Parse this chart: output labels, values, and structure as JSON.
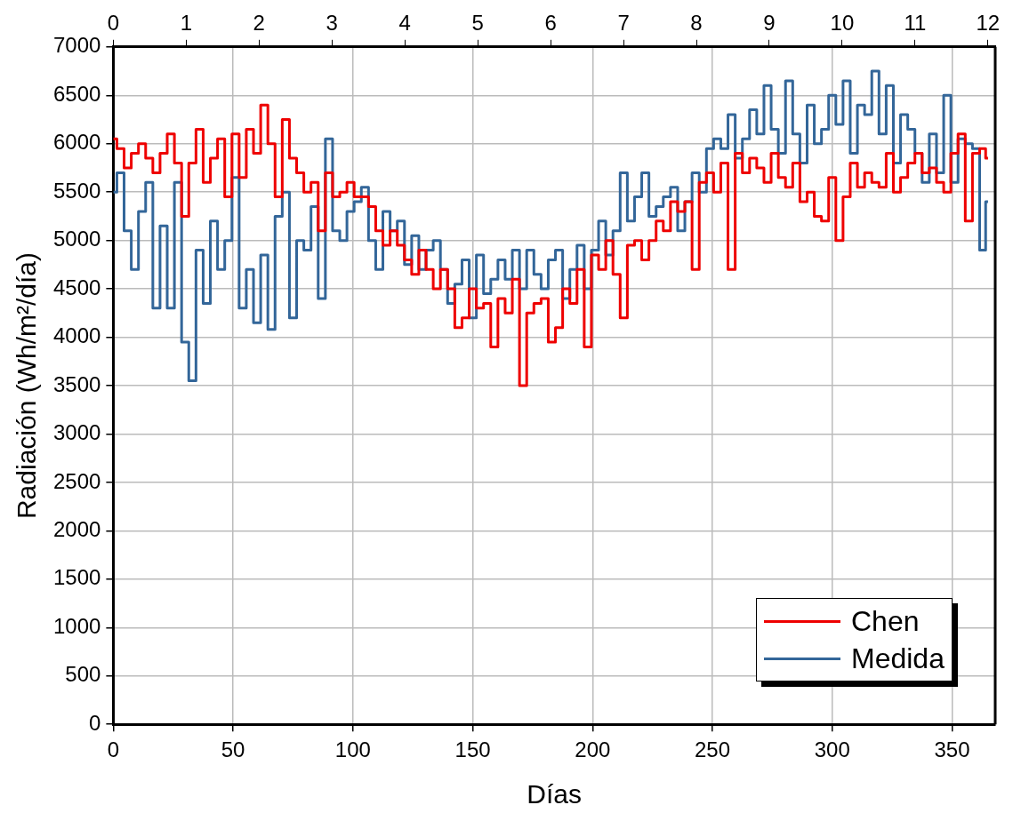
{
  "chart_data": {
    "type": "step",
    "xlabel": "Días",
    "ylabel": "Radiación (Wh/m²/día)",
    "x": [
      0,
      3,
      6,
      9,
      12,
      15,
      18,
      21,
      24,
      27,
      30,
      33,
      36,
      39,
      42,
      45,
      48,
      51,
      54,
      57,
      60,
      63,
      66,
      69,
      72,
      75,
      78,
      81,
      84,
      87,
      90,
      93,
      96,
      99,
      102,
      105,
      108,
      111,
      114,
      117,
      120,
      123,
      126,
      129,
      132,
      135,
      138,
      141,
      144,
      147,
      150,
      153,
      156,
      159,
      162,
      165,
      168,
      171,
      174,
      177,
      180,
      183,
      186,
      189,
      192,
      195,
      198,
      201,
      204,
      207,
      210,
      213,
      216,
      219,
      222,
      225,
      228,
      231,
      234,
      237,
      240,
      243,
      246,
      249,
      252,
      255,
      258,
      261,
      264,
      267,
      270,
      273,
      276,
      279,
      282,
      285,
      288,
      291,
      294,
      297,
      300,
      303,
      306,
      309,
      312,
      315,
      318,
      321,
      324,
      327,
      330,
      333,
      336,
      339,
      342,
      345,
      348,
      351,
      354,
      357,
      360,
      363,
      365
    ],
    "series": [
      {
        "name": "Chen",
        "color": "#ee0000",
        "values": [
          6050,
          5950,
          5750,
          5900,
          6000,
          5850,
          5700,
          5900,
          6100,
          5800,
          5250,
          5800,
          6150,
          5600,
          5850,
          6050,
          5450,
          6100,
          5650,
          6150,
          5900,
          6400,
          6000,
          5450,
          6250,
          5850,
          5700,
          5500,
          5600,
          5100,
          5700,
          5450,
          5500,
          5600,
          5450,
          5450,
          5350,
          5100,
          4950,
          5100,
          4950,
          4800,
          4650,
          4900,
          4700,
          4500,
          4700,
          4500,
          4100,
          4200,
          4500,
          4300,
          4350,
          3900,
          4400,
          4250,
          4600,
          3500,
          4250,
          4350,
          4400,
          3950,
          4100,
          4500,
          4350,
          4700,
          3900,
          4850,
          4700,
          5000,
          4650,
          4200,
          4950,
          5000,
          4800,
          5000,
          5200,
          5100,
          5400,
          5300,
          5400,
          4700,
          5600,
          5700,
          5500,
          5800,
          4700,
          5900,
          5700,
          5850,
          5750,
          5600,
          5900,
          5650,
          5550,
          5800,
          5400,
          5500,
          5250,
          5200,
          5650,
          5000,
          5450,
          5800,
          5550,
          5700,
          5600,
          5550,
          5900,
          5500,
          5650,
          5800,
          5900,
          5700,
          5750,
          5600,
          5500,
          5900,
          6100,
          5200,
          5900,
          5950,
          5850
        ]
      },
      {
        "name": "Medida",
        "color": "#336699",
        "values": [
          5500,
          5700,
          5100,
          4700,
          5300,
          5600,
          4300,
          5150,
          4300,
          5600,
          3950,
          3550,
          4900,
          4350,
          5200,
          4700,
          5000,
          5650,
          4300,
          4700,
          4150,
          4850,
          4080,
          5250,
          5500,
          4200,
          5000,
          4900,
          5350,
          4400,
          6050,
          5100,
          5000,
          5300,
          5400,
          5550,
          5000,
          4700,
          5300,
          5100,
          5200,
          4750,
          5050,
          4700,
          4900,
          5000,
          4700,
          4350,
          4550,
          4800,
          4200,
          4850,
          4450,
          4600,
          4800,
          4600,
          4900,
          4500,
          4900,
          4650,
          4500,
          4800,
          4900,
          4400,
          4700,
          4950,
          4500,
          4900,
          5200,
          4850,
          5100,
          5700,
          5200,
          5450,
          5700,
          5250,
          5350,
          5450,
          5550,
          5100,
          5400,
          5700,
          5500,
          5950,
          6050,
          5950,
          6300,
          5850,
          6050,
          6350,
          6100,
          6600,
          6150,
          5900,
          6650,
          6100,
          5800,
          6400,
          6000,
          6150,
          6500,
          6200,
          6650,
          5900,
          6400,
          6300,
          6750,
          6100,
          6600,
          5800,
          6300,
          6150,
          5900,
          5600,
          6100,
          5700,
          6500,
          5600,
          6050,
          6000,
          5950,
          4900,
          5400
        ]
      }
    ],
    "xlim": [
      0,
      368
    ],
    "xticks": [
      0,
      50,
      100,
      150,
      200,
      250,
      300,
      350
    ],
    "x2lim": [
      0,
      12.1
    ],
    "x2ticks": [
      0,
      1,
      2,
      3,
      4,
      5,
      6,
      7,
      8,
      9,
      10,
      11,
      12
    ],
    "ylim": [
      0,
      7000
    ],
    "yticks": [
      0,
      500,
      1000,
      1500,
      2000,
      2500,
      3000,
      3500,
      4000,
      4500,
      5000,
      5500,
      6000,
      6500,
      7000
    ],
    "grid": true,
    "legend": "bottom right",
    "line_style": "solid",
    "marker": "none"
  }
}
